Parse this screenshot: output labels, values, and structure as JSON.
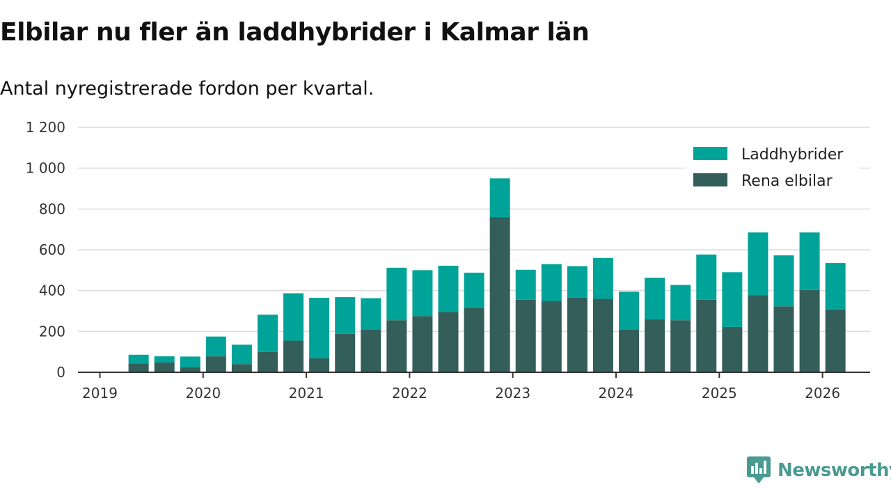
{
  "title": "Elbilar nu fler än laddhybrider i Kalmar län",
  "subtitle": "Antal nyregistrerade fordon per kvartal.",
  "brand": {
    "name": "Newsworthy",
    "icon": "newsworthy-logo-icon"
  },
  "colors": {
    "laddhybrider": "#00a398",
    "rena_elbilar": "#335e5a",
    "grid": "#dcdcdc",
    "axis": "#333333",
    "brand": "#4a9a90"
  },
  "chart_data": {
    "type": "bar",
    "stacked": true,
    "title": "Elbilar nu fler än laddhybrider i Kalmar län",
    "subtitle": "Antal nyregistrerade fordon per kvartal.",
    "xlabel": "",
    "ylabel": "",
    "ylim": [
      0,
      1200
    ],
    "yticks": [
      0,
      200,
      400,
      600,
      800,
      1000,
      1200
    ],
    "ytick_labels": [
      "0",
      "200",
      "400",
      "600",
      "800",
      "1 000",
      "1 200"
    ],
    "xticks": [
      "2019",
      "2020",
      "2021",
      "2022",
      "2023",
      "2024",
      "2025",
      "2026"
    ],
    "grid": true,
    "legend_position": "top-right",
    "categories": [
      "2019 Q2",
      "2019 Q3",
      "2019 Q4",
      "2020 Q1",
      "2020 Q2",
      "2020 Q3",
      "2020 Q4",
      "2021 Q1",
      "2021 Q2",
      "2021 Q3",
      "2021 Q4",
      "2022 Q1",
      "2022 Q2",
      "2022 Q3",
      "2022 Q4",
      "2023 Q1",
      "2023 Q2",
      "2023 Q3",
      "2023 Q4",
      "2024 Q1",
      "2024 Q2",
      "2024 Q3",
      "2024 Q4",
      "2025 Q1",
      "2025 Q2",
      "2025 Q3",
      "2025 Q4",
      "2026 Q1"
    ],
    "series": [
      {
        "name": "Rena elbilar",
        "values": [
          43,
          48,
          25,
          78,
          40,
          100,
          155,
          68,
          188,
          208,
          255,
          275,
          295,
          315,
          760,
          355,
          350,
          365,
          360,
          208,
          260,
          255,
          355,
          222,
          378,
          323,
          403,
          308
        ]
      },
      {
        "name": "Laddhybrider",
        "values": [
          43,
          30,
          52,
          97,
          95,
          182,
          232,
          297,
          180,
          155,
          257,
          225,
          227,
          173,
          190,
          147,
          180,
          155,
          200,
          187,
          203,
          173,
          222,
          268,
          307,
          250,
          282,
          227
        ]
      }
    ],
    "legend": [
      "Laddhybrider",
      "Rena elbilar"
    ]
  }
}
